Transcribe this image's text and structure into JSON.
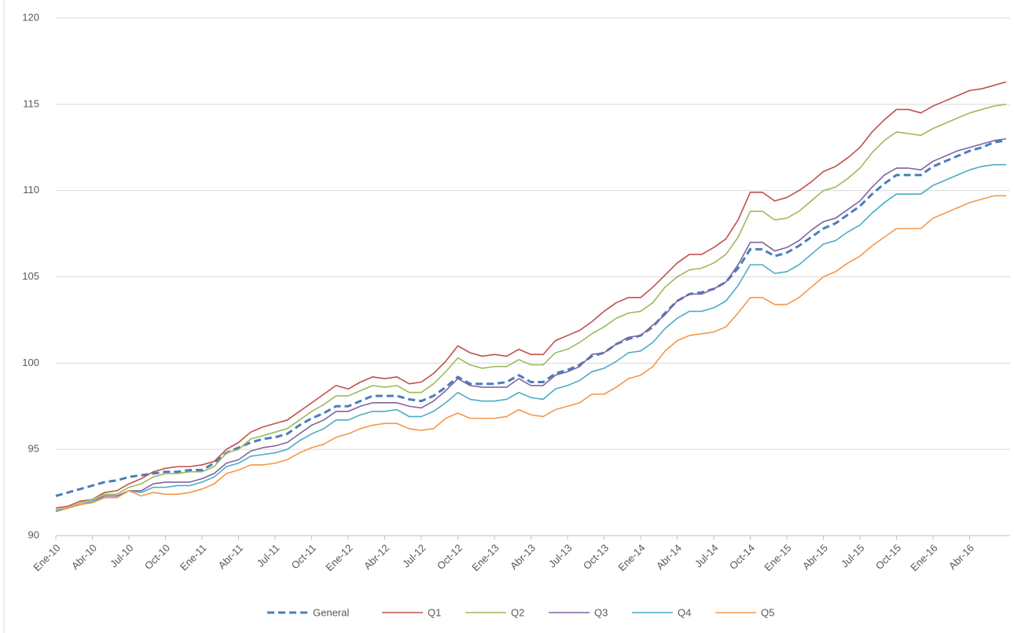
{
  "chart_data": {
    "type": "line",
    "categories": [
      "Ene-10",
      null,
      null,
      "Abr-10",
      null,
      null,
      "Jul-10",
      null,
      null,
      "Oct-10",
      null,
      null,
      "Ene-11",
      null,
      null,
      "Abr-11",
      null,
      null,
      "Jul-11",
      null,
      null,
      "Oct-11",
      null,
      null,
      "Ene-12",
      null,
      null,
      "Abr-12",
      null,
      null,
      "Jul-12",
      null,
      null,
      "Oct-12",
      null,
      null,
      "Ene-13",
      null,
      null,
      "Abr-13",
      null,
      null,
      "Jul-13",
      null,
      null,
      "Oct-13",
      null,
      null,
      "Ene-14",
      null,
      null,
      "Abr-14",
      null,
      null,
      "Jul-14",
      null,
      null,
      "Oct-14",
      null,
      null,
      "Ene-15",
      null,
      null,
      "Abr-15",
      null,
      null,
      "Jul-15",
      null,
      null,
      "Oct-15",
      null,
      null,
      "Ene-16",
      null,
      null,
      "Abr-16",
      null,
      null,
      null
    ],
    "series": [
      {
        "name": "General",
        "color": "#4a7ebb",
        "line_style": "dashed",
        "values": [
          92.3,
          92.5,
          92.7,
          92.9,
          93.1,
          93.2,
          93.4,
          93.5,
          93.6,
          93.7,
          93.7,
          93.8,
          93.8,
          94.2,
          94.8,
          95.1,
          95.4,
          95.6,
          95.7,
          95.9,
          96.4,
          96.8,
          97.1,
          97.5,
          97.5,
          97.8,
          98.1,
          98.1,
          98.1,
          97.9,
          97.8,
          98.1,
          98.6,
          99.2,
          98.8,
          98.8,
          98.8,
          98.9,
          99.3,
          98.9,
          98.9,
          99.4,
          99.6,
          99.9,
          100.4,
          100.6,
          101.1,
          101.4,
          101.6,
          102.1,
          102.9,
          103.6,
          104.0,
          104.1,
          104.3,
          104.7,
          105.5,
          106.6,
          106.6,
          106.2,
          106.4,
          106.8,
          107.3,
          107.8,
          108.1,
          108.6,
          109.1,
          109.8,
          110.4,
          110.9,
          110.9,
          110.9,
          111.4,
          111.7,
          112.0,
          112.3,
          112.5,
          112.8,
          112.9
        ]
      },
      {
        "name": "Q1",
        "color": "#c0504d",
        "line_style": "solid",
        "values": [
          91.6,
          91.7,
          92.0,
          92.1,
          92.5,
          92.6,
          93.0,
          93.3,
          93.7,
          93.9,
          94.0,
          94.0,
          94.1,
          94.3,
          95.0,
          95.4,
          96.0,
          96.3,
          96.5,
          96.7,
          97.2,
          97.7,
          98.2,
          98.7,
          98.5,
          98.9,
          99.2,
          99.1,
          99.2,
          98.8,
          98.9,
          99.4,
          100.1,
          101.0,
          100.6,
          100.4,
          100.5,
          100.4,
          100.8,
          100.5,
          100.5,
          101.3,
          101.6,
          101.9,
          102.4,
          103.0,
          103.5,
          103.8,
          103.8,
          104.4,
          105.1,
          105.8,
          106.3,
          106.3,
          106.7,
          107.2,
          108.3,
          109.9,
          109.9,
          109.4,
          109.6,
          110.0,
          110.5,
          111.1,
          111.4,
          111.9,
          112.5,
          113.4,
          114.1,
          114.7,
          114.7,
          114.5,
          114.9,
          115.2,
          115.5,
          115.8,
          115.9,
          116.1,
          116.3
        ]
      },
      {
        "name": "Q2",
        "color": "#9bbb59",
        "line_style": "solid",
        "values": [
          91.5,
          91.6,
          91.9,
          92.1,
          92.4,
          92.4,
          92.8,
          93.0,
          93.4,
          93.6,
          93.6,
          93.7,
          93.7,
          94.0,
          94.8,
          95.0,
          95.6,
          95.8,
          96.0,
          96.2,
          96.7,
          97.2,
          97.6,
          98.1,
          98.1,
          98.4,
          98.7,
          98.6,
          98.7,
          98.3,
          98.3,
          98.8,
          99.5,
          100.3,
          99.9,
          99.7,
          99.8,
          99.8,
          100.2,
          99.9,
          99.9,
          100.6,
          100.8,
          101.2,
          101.7,
          102.1,
          102.6,
          102.9,
          103.0,
          103.5,
          104.4,
          105.0,
          105.4,
          105.5,
          105.8,
          106.3,
          107.3,
          108.8,
          108.8,
          108.3,
          108.4,
          108.8,
          109.4,
          110.0,
          110.2,
          110.7,
          111.3,
          112.2,
          112.9,
          113.4,
          113.3,
          113.2,
          113.6,
          113.9,
          114.2,
          114.5,
          114.7,
          114.9,
          115.0
        ]
      },
      {
        "name": "Q3",
        "color": "#8064a2",
        "line_style": "solid",
        "values": [
          91.4,
          91.6,
          91.8,
          92.0,
          92.3,
          92.3,
          92.6,
          92.6,
          93.0,
          93.1,
          93.1,
          93.1,
          93.3,
          93.6,
          94.2,
          94.4,
          94.9,
          95.1,
          95.2,
          95.4,
          95.9,
          96.4,
          96.7,
          97.2,
          97.2,
          97.5,
          97.7,
          97.7,
          97.7,
          97.5,
          97.4,
          97.8,
          98.4,
          99.1,
          98.7,
          98.6,
          98.6,
          98.6,
          99.1,
          98.7,
          98.7,
          99.3,
          99.5,
          99.8,
          100.5,
          100.6,
          101.1,
          101.5,
          101.6,
          102.2,
          102.8,
          103.6,
          104.0,
          104.0,
          104.3,
          104.7,
          105.7,
          107.0,
          107.0,
          106.5,
          106.7,
          107.1,
          107.7,
          108.2,
          108.4,
          108.9,
          109.4,
          110.2,
          110.9,
          111.3,
          111.3,
          111.2,
          111.7,
          112.0,
          112.3,
          112.5,
          112.7,
          112.9,
          113.0
        ]
      },
      {
        "name": "Q4",
        "color": "#4bacc6",
        "line_style": "solid",
        "values": [
          91.4,
          91.6,
          91.8,
          92.0,
          92.2,
          92.2,
          92.6,
          92.5,
          92.8,
          92.8,
          92.9,
          92.9,
          93.1,
          93.4,
          94.0,
          94.2,
          94.6,
          94.7,
          94.8,
          95.0,
          95.5,
          95.9,
          96.2,
          96.7,
          96.7,
          97.0,
          97.2,
          97.2,
          97.3,
          96.9,
          96.9,
          97.2,
          97.7,
          98.3,
          97.9,
          97.8,
          97.8,
          97.9,
          98.3,
          98.0,
          97.9,
          98.5,
          98.7,
          99.0,
          99.5,
          99.7,
          100.1,
          100.6,
          100.7,
          101.2,
          102.0,
          102.6,
          103.0,
          103.0,
          103.2,
          103.6,
          104.5,
          105.7,
          105.7,
          105.2,
          105.3,
          105.7,
          106.3,
          106.9,
          107.1,
          107.6,
          108.0,
          108.7,
          109.3,
          109.8,
          109.8,
          109.8,
          110.3,
          110.6,
          110.9,
          111.2,
          111.4,
          111.5,
          111.5
        ]
      },
      {
        "name": "Q5",
        "color": "#f79646",
        "line_style": "solid",
        "values": [
          91.5,
          91.6,
          91.8,
          91.9,
          92.2,
          92.2,
          92.6,
          92.3,
          92.5,
          92.4,
          92.4,
          92.5,
          92.7,
          93.0,
          93.6,
          93.8,
          94.1,
          94.1,
          94.2,
          94.4,
          94.8,
          95.1,
          95.3,
          95.7,
          95.9,
          96.2,
          96.4,
          96.5,
          96.5,
          96.2,
          96.1,
          96.2,
          96.8,
          97.1,
          96.8,
          96.8,
          96.8,
          96.9,
          97.3,
          97.0,
          96.9,
          97.3,
          97.5,
          97.7,
          98.2,
          98.2,
          98.6,
          99.1,
          99.3,
          99.8,
          100.7,
          101.3,
          101.6,
          101.7,
          101.8,
          102.1,
          102.9,
          103.8,
          103.8,
          103.4,
          103.4,
          103.8,
          104.4,
          105.0,
          105.3,
          105.8,
          106.2,
          106.8,
          107.3,
          107.8,
          107.8,
          107.8,
          108.4,
          108.7,
          109.0,
          109.3,
          109.5,
          109.7,
          109.7
        ]
      }
    ],
    "ylim": [
      90,
      120
    ],
    "yticks": [
      90,
      95,
      100,
      105,
      110,
      115,
      120
    ],
    "grid": true,
    "legend": "bottom"
  }
}
